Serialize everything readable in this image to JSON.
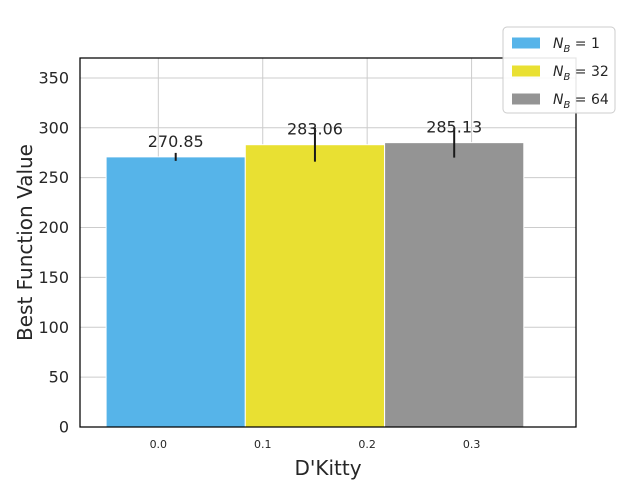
{
  "chart_data": {
    "type": "bar",
    "xlabel": "D'Kitty",
    "ylabel": "Best Function Value",
    "ylim": [
      0,
      370
    ],
    "yticks": [
      0,
      50,
      100,
      150,
      200,
      250,
      300,
      350
    ],
    "ytick_labels": [
      "0",
      "50",
      "100",
      "150",
      "200",
      "250",
      "300",
      "350"
    ],
    "xlim": [
      -0.075,
      0.4
    ],
    "xticks": [
      0.0,
      0.1,
      0.2,
      0.3
    ],
    "xtick_labels": [
      "0.0",
      "0.1",
      "0.2",
      "0.3"
    ],
    "grid": true,
    "legend_position": "top-right",
    "series": [
      {
        "name": "N_B = 1",
        "legend_base": "N",
        "legend_sub": "B",
        "legend_value": "1",
        "color": "#56B4E9",
        "x_from": -0.05,
        "x_to": 0.0833,
        "value": 270.85,
        "error": 4,
        "label": "270.85"
      },
      {
        "name": "N_B = 32",
        "legend_base": "N",
        "legend_sub": "B",
        "legend_value": "32",
        "color": "#E9E032",
        "x_from": 0.0833,
        "x_to": 0.2167,
        "value": 283.06,
        "error": 17,
        "label": "283.06"
      },
      {
        "name": "N_B = 64",
        "legend_base": "N",
        "legend_sub": "B",
        "legend_value": "64",
        "color": "#949494",
        "x_from": 0.2167,
        "x_to": 0.35,
        "value": 285.13,
        "error": 15,
        "label": "285.13"
      }
    ]
  }
}
